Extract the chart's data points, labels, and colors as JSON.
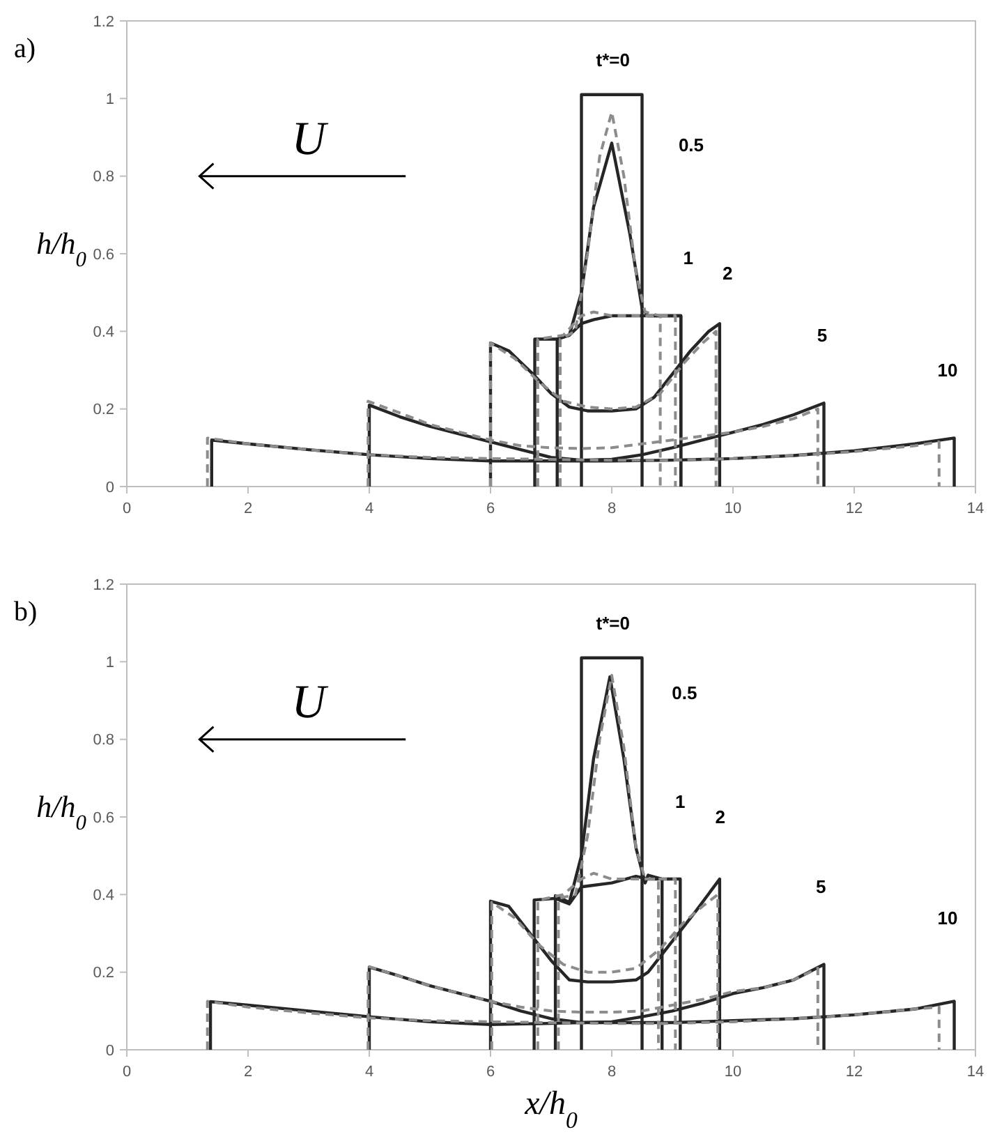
{
  "chart_data": [
    {
      "type": "line",
      "title": "a)",
      "ylabel": "h/h$_{0}$",
      "xlim": [
        0,
        14
      ],
      "xticks": [
        0,
        2,
        4,
        6,
        8,
        10,
        12,
        14
      ],
      "ylim": [
        0,
        1.2
      ],
      "yticks": [
        0,
        0.2,
        0.4,
        0.6,
        0.8,
        1,
        1.2
      ],
      "grid": false,
      "annotations": [
        "t*=0",
        "0.5",
        "1",
        "2",
        "5",
        "10",
        "U"
      ],
      "series": [
        {
          "color": "#262626",
          "line_style": "solid",
          "x": [
            7.5,
            7.5,
            8.5,
            8.5
          ],
          "values": [
            0,
            1.01,
            1.01,
            0
          ]
        },
        {
          "color": "#262626",
          "line_style": "solid",
          "x": [
            7.1,
            7.1,
            7.3,
            7.5,
            7.7,
            8.0,
            8.3,
            8.5,
            8.6,
            9.14,
            9.14
          ],
          "values": [
            0,
            0.38,
            0.39,
            0.5,
            0.72,
            0.885,
            0.65,
            0.46,
            0.44,
            0.44,
            0
          ]
        },
        {
          "color": "#262626",
          "line_style": "solid",
          "x": [
            6.73,
            6.73,
            7.1,
            7.3,
            7.5,
            7.7,
            8.0,
            8.5,
            9.14,
            9.14
          ],
          "values": [
            0,
            0.38,
            0.38,
            0.39,
            0.42,
            0.43,
            0.44,
            0.44,
            0.44,
            0
          ]
        },
        {
          "color": "#262626",
          "line_style": "solid",
          "x": [
            6.0,
            6.0,
            6.3,
            6.7,
            7.0,
            7.3,
            7.6,
            8.0,
            8.4,
            8.7,
            9.0,
            9.3,
            9.6,
            9.78,
            9.78
          ],
          "values": [
            0,
            0.37,
            0.35,
            0.29,
            0.24,
            0.205,
            0.195,
            0.195,
            0.2,
            0.23,
            0.29,
            0.35,
            0.4,
            0.42,
            0
          ]
        },
        {
          "color": "#262626",
          "line_style": "solid",
          "x": [
            4.0,
            4.0,
            4.5,
            5,
            5.5,
            6,
            6.5,
            7,
            7.5,
            8,
            8.5,
            9,
            9.5,
            10,
            10.5,
            11,
            11.5,
            11.5
          ],
          "values": [
            0,
            0.21,
            0.18,
            0.155,
            0.135,
            0.115,
            0.095,
            0.075,
            0.068,
            0.07,
            0.082,
            0.1,
            0.12,
            0.14,
            0.16,
            0.185,
            0.215,
            0
          ]
        },
        {
          "color": "#262626",
          "line_style": "solid",
          "x": [
            1.4,
            1.4,
            2,
            3,
            4,
            5,
            6,
            7,
            8,
            9,
            10,
            11,
            12,
            13,
            13.65,
            13.65
          ],
          "values": [
            0,
            0.12,
            0.11,
            0.095,
            0.082,
            0.072,
            0.066,
            0.066,
            0.066,
            0.068,
            0.072,
            0.08,
            0.092,
            0.11,
            0.125,
            0
          ]
        },
        {
          "color": "#8c8c8c",
          "line_style": "dashed",
          "x": [
            7.15,
            7.15,
            7.4,
            7.6,
            7.8,
            8.0,
            8.2,
            8.4,
            8.55,
            8.8,
            8.8
          ],
          "values": [
            0,
            0.38,
            0.4,
            0.6,
            0.85,
            0.965,
            0.8,
            0.55,
            0.45,
            0.44,
            0
          ]
        },
        {
          "color": "#8c8c8c",
          "line_style": "dashed",
          "x": [
            6.78,
            6.78,
            7.2,
            7.5,
            7.7,
            8,
            8.5,
            9.05,
            9.05
          ],
          "values": [
            0,
            0.38,
            0.39,
            0.44,
            0.45,
            0.44,
            0.44,
            0.44,
            0
          ]
        },
        {
          "color": "#8c8c8c",
          "line_style": "dashed",
          "x": [
            6.0,
            6.0,
            6.4,
            6.8,
            7.2,
            7.6,
            8.0,
            8.4,
            8.8,
            9.2,
            9.5,
            9.72,
            9.72
          ],
          "values": [
            0,
            0.37,
            0.33,
            0.27,
            0.22,
            0.205,
            0.2,
            0.205,
            0.24,
            0.32,
            0.37,
            0.4,
            0
          ]
        },
        {
          "color": "#8c8c8c",
          "line_style": "dashed",
          "x": [
            3.98,
            3.98,
            4.5,
            5,
            5.5,
            6,
            6.5,
            7,
            7.5,
            8,
            8.5,
            9,
            9.5,
            10,
            10.5,
            11,
            11.4,
            11.4
          ],
          "values": [
            0,
            0.22,
            0.19,
            0.16,
            0.14,
            0.12,
            0.105,
            0.1,
            0.098,
            0.1,
            0.11,
            0.12,
            0.13,
            0.14,
            0.155,
            0.175,
            0.2,
            0
          ]
        },
        {
          "color": "#8c8c8c",
          "line_style": "dashed",
          "x": [
            1.33,
            1.33,
            2,
            3,
            4,
            5,
            6,
            7,
            8,
            9,
            10,
            11,
            12,
            13,
            13.4,
            13.4
          ],
          "values": [
            0,
            0.125,
            0.11,
            0.095,
            0.082,
            0.075,
            0.072,
            0.07,
            0.068,
            0.068,
            0.072,
            0.08,
            0.09,
            0.105,
            0.115,
            0
          ]
        }
      ]
    },
    {
      "type": "line",
      "title": "b)",
      "ylabel": "h/h$_{0}$",
      "xlabel": "x/h$_{0}$",
      "xlim": [
        0,
        14
      ],
      "xticks": [
        0,
        2,
        4,
        6,
        8,
        10,
        12,
        14
      ],
      "ylim": [
        0,
        1.2
      ],
      "yticks": [
        0,
        0.2,
        0.4,
        0.6,
        0.8,
        1,
        1.2
      ],
      "grid": false,
      "annotations": [
        "t*=0",
        "0.5",
        "1",
        "2",
        "5",
        "10",
        "U"
      ],
      "series": [
        {
          "color": "#262626",
          "line_style": "solid",
          "x": [
            7.5,
            7.5,
            8.5,
            8.5
          ],
          "values": [
            0,
            1.01,
            1.01,
            0
          ]
        },
        {
          "color": "#262626",
          "line_style": "solid",
          "x": [
            7.07,
            7.07,
            7.3,
            7.5,
            7.7,
            7.97,
            8.2,
            8.4,
            8.55,
            8.6,
            8.83,
            8.83
          ],
          "values": [
            0,
            0.397,
            0.38,
            0.5,
            0.75,
            0.961,
            0.75,
            0.52,
            0.43,
            0.45,
            0.44,
            0
          ]
        },
        {
          "color": "#262626",
          "line_style": "solid",
          "x": [
            6.72,
            6.72,
            7.07,
            7.3,
            7.5,
            8.0,
            8.4,
            8.6,
            9.13,
            9.13
          ],
          "values": [
            0,
            0.386,
            0.39,
            0.376,
            0.42,
            0.43,
            0.447,
            0.44,
            0.44,
            0
          ]
        },
        {
          "color": "#262626",
          "line_style": "solid",
          "x": [
            6.0,
            6.0,
            6.3,
            6.6,
            7.0,
            7.3,
            7.6,
            8.0,
            8.4,
            8.6,
            9.0,
            9.4,
            9.78,
            9.78
          ],
          "values": [
            0,
            0.383,
            0.37,
            0.31,
            0.23,
            0.18,
            0.175,
            0.175,
            0.18,
            0.2,
            0.28,
            0.36,
            0.44,
            0
          ]
        },
        {
          "color": "#262626",
          "line_style": "solid",
          "x": [
            4.0,
            4.0,
            4.5,
            5,
            5.5,
            6,
            6.5,
            7,
            7.5,
            8,
            8.5,
            9,
            9.5,
            10,
            10.5,
            11,
            11.5,
            11.5
          ],
          "values": [
            0,
            0.213,
            0.19,
            0.165,
            0.145,
            0.125,
            0.1,
            0.08,
            0.07,
            0.072,
            0.085,
            0.1,
            0.12,
            0.145,
            0.16,
            0.18,
            0.22,
            0
          ]
        },
        {
          "color": "#262626",
          "line_style": "solid",
          "x": [
            1.38,
            1.38,
            2,
            3,
            4,
            5,
            6,
            7,
            7.5,
            8,
            9,
            10,
            11,
            12,
            13,
            13.65,
            13.65
          ],
          "values": [
            0,
            0.124,
            0.115,
            0.1,
            0.085,
            0.072,
            0.065,
            0.068,
            0.07,
            0.07,
            0.07,
            0.075,
            0.08,
            0.09,
            0.105,
            0.125,
            0
          ]
        },
        {
          "color": "#8c8c8c",
          "line_style": "dashed",
          "x": [
            7.12,
            7.12,
            7.4,
            7.6,
            7.8,
            8.0,
            8.2,
            8.4,
            8.55,
            8.77,
            8.77
          ],
          "values": [
            0,
            0.39,
            0.4,
            0.55,
            0.8,
            0.965,
            0.78,
            0.52,
            0.44,
            0.44,
            0
          ]
        },
        {
          "color": "#8c8c8c",
          "line_style": "dashed",
          "x": [
            6.78,
            6.78,
            7.2,
            7.5,
            7.7,
            8,
            8.5,
            9.05,
            9.05
          ],
          "values": [
            0,
            0.385,
            0.4,
            0.44,
            0.455,
            0.44,
            0.44,
            0.44,
            0
          ]
        },
        {
          "color": "#8c8c8c",
          "line_style": "dashed",
          "x": [
            6.02,
            6.02,
            6.4,
            6.8,
            7.2,
            7.6,
            8.0,
            8.4,
            8.8,
            9.2,
            9.5,
            9.75,
            9.75
          ],
          "values": [
            0,
            0.38,
            0.34,
            0.27,
            0.22,
            0.2,
            0.2,
            0.21,
            0.26,
            0.33,
            0.37,
            0.4,
            0
          ]
        },
        {
          "color": "#8c8c8c",
          "line_style": "dashed",
          "x": [
            3.98,
            3.98,
            4.5,
            5,
            6,
            6.5,
            7,
            7.5,
            8,
            8.5,
            9,
            9.5,
            10,
            10.5,
            11,
            11.4,
            11.4
          ],
          "values": [
            0,
            0.215,
            0.19,
            0.165,
            0.125,
            0.11,
            0.1,
            0.097,
            0.097,
            0.1,
            0.115,
            0.13,
            0.15,
            0.16,
            0.18,
            0.21,
            0
          ]
        },
        {
          "color": "#8c8c8c",
          "line_style": "dashed",
          "x": [
            1.33,
            1.33,
            2,
            3,
            4,
            5,
            6,
            7,
            8,
            9,
            10,
            11,
            12,
            13,
            13.4,
            13.4
          ],
          "values": [
            0,
            0.125,
            0.11,
            0.095,
            0.082,
            0.075,
            0.072,
            0.07,
            0.068,
            0.068,
            0.072,
            0.08,
            0.09,
            0.105,
            0.11,
            0
          ]
        }
      ]
    }
  ]
}
